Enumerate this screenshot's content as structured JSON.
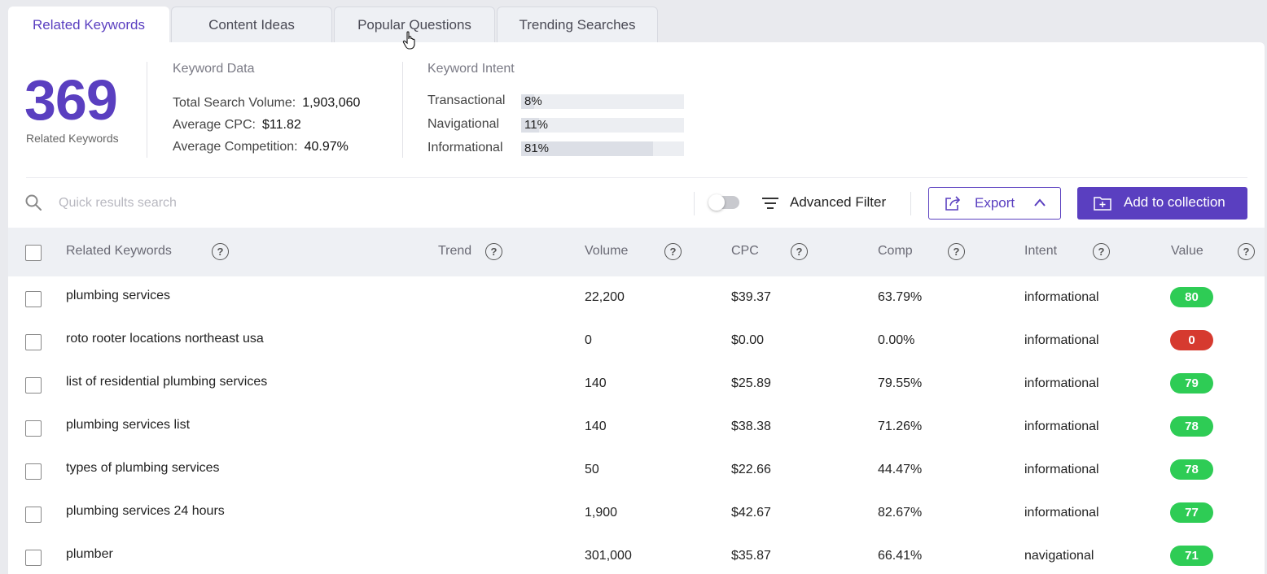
{
  "tabs": [
    {
      "label": "Related Keywords",
      "active": true
    },
    {
      "label": "Content Ideas",
      "active": false
    },
    {
      "label": "Popular Questions",
      "active": false
    },
    {
      "label": "Trending Searches",
      "active": false
    }
  ],
  "summary": {
    "count": "369",
    "count_label": "Related Keywords"
  },
  "keyword_data": {
    "title": "Keyword Data",
    "total_search_volume_label": "Total Search Volume:",
    "total_search_volume": "1,903,060",
    "average_cpc_label": "Average CPC:",
    "average_cpc": "$11.82",
    "average_competition_label": "Average Competition:",
    "average_competition": "40.97%"
  },
  "keyword_intent": {
    "title": "Keyword Intent",
    "items": [
      {
        "label": "Transactional",
        "percent": "8%",
        "fraction": 0.08
      },
      {
        "label": "Navigational",
        "percent": "11%",
        "fraction": 0.11
      },
      {
        "label": "Informational",
        "percent": "81%",
        "fraction": 0.81
      }
    ]
  },
  "toolbar": {
    "search_placeholder": "Quick results search",
    "advanced_filter_label": "Advanced Filter",
    "export_label": "Export",
    "add_to_collection_label": "Add to collection"
  },
  "table": {
    "headers": {
      "keyword": "Related Keywords",
      "trend": "Trend",
      "volume": "Volume",
      "cpc": "CPC",
      "comp": "Comp",
      "intent": "Intent",
      "value": "Value"
    },
    "help_glyph": "?",
    "rows": [
      {
        "keyword": "plumbing services",
        "volume": "22,200",
        "cpc": "$39.37",
        "comp": "63.79%",
        "intent": "informational",
        "value": "80",
        "value_color": "#2ecc55"
      },
      {
        "keyword": "roto rooter locations northeast usa",
        "volume": "0",
        "cpc": "$0.00",
        "comp": "0.00%",
        "intent": "informational",
        "value": "0",
        "value_color": "#d63a2f"
      },
      {
        "keyword": "list of residential plumbing services",
        "volume": "140",
        "cpc": "$25.89",
        "comp": "79.55%",
        "intent": "informational",
        "value": "79",
        "value_color": "#2ecc55"
      },
      {
        "keyword": "plumbing services list",
        "volume": "140",
        "cpc": "$38.38",
        "comp": "71.26%",
        "intent": "informational",
        "value": "78",
        "value_color": "#2ecc55"
      },
      {
        "keyword": "types of plumbing services",
        "volume": "50",
        "cpc": "$22.66",
        "comp": "44.47%",
        "intent": "informational",
        "value": "78",
        "value_color": "#2ecc55"
      },
      {
        "keyword": "plumbing services 24 hours",
        "volume": "1,900",
        "cpc": "$42.67",
        "comp": "82.67%",
        "intent": "informational",
        "value": "77",
        "value_color": "#2ecc55"
      },
      {
        "keyword": "plumber",
        "volume": "301,000",
        "cpc": "$35.87",
        "comp": "66.41%",
        "intent": "navigational",
        "value": "71",
        "value_color": "#2ecc55"
      }
    ]
  },
  "colors": {
    "accent": "#5a3fc0"
  }
}
